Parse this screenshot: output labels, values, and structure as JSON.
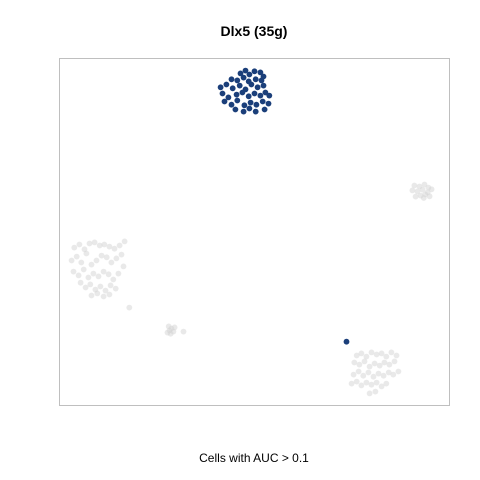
{
  "chart_data": {
    "type": "scatter",
    "title": "Dlx5 (35g)",
    "xlabel": "Cells with AUC > 0.1",
    "ylabel": "",
    "xlim": [
      0,
      100
    ],
    "ylim": [
      0,
      100
    ],
    "axis_ticks": false,
    "grid": false,
    "colors": {
      "highlight": "#1b3f7a",
      "background": "#d3d3d3",
      "frame": "#bfbfbf"
    },
    "series": [
      {
        "role": "cells-below-threshold",
        "points": [
          [
            91.0,
            63.4
          ],
          [
            92.3,
            63.1
          ],
          [
            93.6,
            63.7
          ],
          [
            94.6,
            62.8
          ],
          [
            90.5,
            62.0
          ],
          [
            91.8,
            61.7
          ],
          [
            93.1,
            62.2
          ],
          [
            94.4,
            61.4
          ],
          [
            95.4,
            62.3
          ],
          [
            92.6,
            60.5
          ],
          [
            93.8,
            60.8
          ],
          [
            91.3,
            60.2
          ],
          [
            94.9,
            60.3
          ],
          [
            93.4,
            59.8
          ],
          [
            3.8,
            45.5
          ],
          [
            5.1,
            46.4
          ],
          [
            6.4,
            45.0
          ],
          [
            7.7,
            46.7
          ],
          [
            9.0,
            47.0
          ],
          [
            10.3,
            46.1
          ],
          [
            11.5,
            46.4
          ],
          [
            12.8,
            45.8
          ],
          [
            14.1,
            45.2
          ],
          [
            15.4,
            46.1
          ],
          [
            16.7,
            47.3
          ],
          [
            3.1,
            41.8
          ],
          [
            4.4,
            42.9
          ],
          [
            5.6,
            41.2
          ],
          [
            6.9,
            43.8
          ],
          [
            8.2,
            40.6
          ],
          [
            9.5,
            41.8
          ],
          [
            10.8,
            43.2
          ],
          [
            12.1,
            42.7
          ],
          [
            13.3,
            41.2
          ],
          [
            14.6,
            42.4
          ],
          [
            15.9,
            43.5
          ],
          [
            3.6,
            38.6
          ],
          [
            4.9,
            37.5
          ],
          [
            6.2,
            39.2
          ],
          [
            7.4,
            36.9
          ],
          [
            8.7,
            38.0
          ],
          [
            10.0,
            37.2
          ],
          [
            11.3,
            38.6
          ],
          [
            12.6,
            37.8
          ],
          [
            13.8,
            36.3
          ],
          [
            15.1,
            38.0
          ],
          [
            16.4,
            40.1
          ],
          [
            5.4,
            35.4
          ],
          [
            6.7,
            34.0
          ],
          [
            7.9,
            34.9
          ],
          [
            9.2,
            33.4
          ],
          [
            10.5,
            34.3
          ],
          [
            11.8,
            33.1
          ],
          [
            13.1,
            34.6
          ],
          [
            14.4,
            33.7
          ],
          [
            8.2,
            31.7
          ],
          [
            9.7,
            32.3
          ],
          [
            11.3,
            31.4
          ],
          [
            12.8,
            32.0
          ],
          [
            17.9,
            28.2
          ],
          [
            28.2,
            21.6
          ],
          [
            28.7,
            22.2
          ],
          [
            29.2,
            21.3
          ],
          [
            28.5,
            20.7
          ],
          [
            27.7,
            21.0
          ],
          [
            29.5,
            22.5
          ],
          [
            28.0,
            22.8
          ],
          [
            31.8,
            21.3
          ],
          [
            76.2,
            14.4
          ],
          [
            77.4,
            15.0
          ],
          [
            78.7,
            14.1
          ],
          [
            80.0,
            15.3
          ],
          [
            81.3,
            14.7
          ],
          [
            82.6,
            15.0
          ],
          [
            83.8,
            14.1
          ],
          [
            85.1,
            15.3
          ],
          [
            86.4,
            14.4
          ],
          [
            75.6,
            12.4
          ],
          [
            76.9,
            11.8
          ],
          [
            78.2,
            12.7
          ],
          [
            79.5,
            11.2
          ],
          [
            80.8,
            12.1
          ],
          [
            82.1,
            11.5
          ],
          [
            83.3,
            12.4
          ],
          [
            84.6,
            11.8
          ],
          [
            85.9,
            12.7
          ],
          [
            75.4,
            8.9
          ],
          [
            76.7,
            9.8
          ],
          [
            77.9,
            8.6
          ],
          [
            79.2,
            9.5
          ],
          [
            80.5,
            8.3
          ],
          [
            81.8,
            9.2
          ],
          [
            83.1,
            8.6
          ],
          [
            84.4,
            9.5
          ],
          [
            85.6,
            8.9
          ],
          [
            86.9,
            9.8
          ],
          [
            74.9,
            6.3
          ],
          [
            76.2,
            6.9
          ],
          [
            77.4,
            5.8
          ],
          [
            78.7,
            6.6
          ],
          [
            80.0,
            6.0
          ],
          [
            81.3,
            6.6
          ],
          [
            82.6,
            5.5
          ],
          [
            83.8,
            6.3
          ],
          [
            79.5,
            3.5
          ],
          [
            81.0,
            4.0
          ]
        ]
      },
      {
        "role": "cells-above-threshold",
        "points": [
          [
            46.4,
            95.7
          ],
          [
            47.7,
            96.5
          ],
          [
            48.7,
            95.4
          ],
          [
            50.0,
            96.3
          ],
          [
            51.5,
            96.0
          ],
          [
            44.1,
            94.0
          ],
          [
            45.6,
            93.7
          ],
          [
            47.2,
            94.5
          ],
          [
            48.5,
            93.4
          ],
          [
            50.3,
            94.0
          ],
          [
            51.8,
            93.7
          ],
          [
            52.3,
            94.8
          ],
          [
            41.3,
            91.7
          ],
          [
            42.8,
            92.5
          ],
          [
            44.4,
            91.4
          ],
          [
            46.2,
            92.2
          ],
          [
            47.7,
            91.1
          ],
          [
            49.2,
            92.5
          ],
          [
            50.8,
            91.7
          ],
          [
            52.3,
            92.2
          ],
          [
            41.8,
            89.9
          ],
          [
            43.3,
            88.8
          ],
          [
            45.4,
            89.6
          ],
          [
            46.9,
            90.2
          ],
          [
            48.5,
            89.1
          ],
          [
            50.0,
            89.9
          ],
          [
            51.5,
            89.3
          ],
          [
            52.8,
            90.2
          ],
          [
            53.8,
            89.3
          ],
          [
            42.3,
            87.6
          ],
          [
            44.1,
            86.7
          ],
          [
            45.6,
            87.9
          ],
          [
            47.4,
            86.5
          ],
          [
            49.0,
            87.3
          ],
          [
            50.5,
            86.7
          ],
          [
            52.1,
            87.6
          ],
          [
            53.6,
            87.0
          ],
          [
            45.1,
            85.3
          ],
          [
            47.2,
            84.7
          ],
          [
            48.7,
            85.6
          ],
          [
            50.3,
            84.7
          ],
          [
            52.6,
            85.3
          ],
          [
            73.6,
            18.4
          ]
        ]
      }
    ]
  }
}
